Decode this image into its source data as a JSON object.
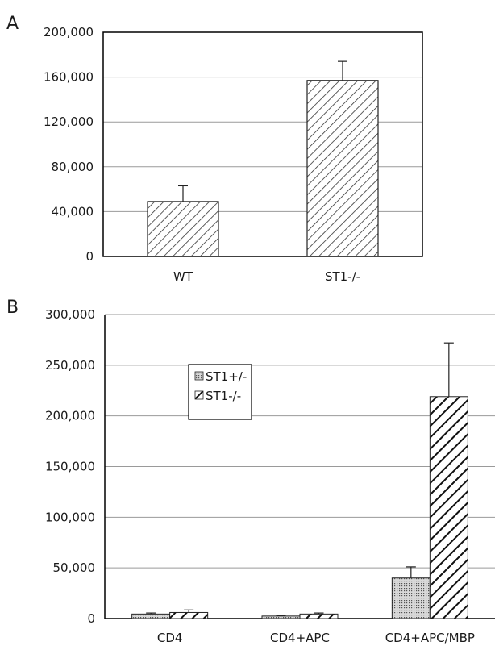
{
  "chart_data": [
    {
      "type": "bar",
      "panel": "A",
      "categories": [
        "WT",
        "ST1-/-"
      ],
      "values": [
        49000,
        157000
      ],
      "errors": [
        14000,
        17000
      ],
      "ylim": [
        0,
        200000
      ],
      "yticks": [
        "0",
        "40,000",
        "80,000",
        "120,000",
        "160,000",
        "200,000"
      ],
      "grid": true,
      "legend": null,
      "title": "",
      "xlabel": "",
      "ylabel": ""
    },
    {
      "type": "bar",
      "panel": "B",
      "categories": [
        "CD4",
        "CD4+APC",
        "CD4+APC/MBP"
      ],
      "series": [
        {
          "name": "ST1+/-",
          "values": [
            4500,
            2500,
            40000
          ],
          "errors": [
            1000,
            800,
            11000
          ]
        },
        {
          "name": "ST1-/-",
          "values": [
            6000,
            4500,
            219000
          ],
          "errors": [
            2500,
            1000,
            53000
          ]
        }
      ],
      "ylim": [
        0,
        300000
      ],
      "yticks": [
        "0",
        "50,000",
        "100,000",
        "150,000",
        "200,000",
        "250,000",
        "300,000"
      ],
      "grid": true,
      "legend": "upper-left",
      "title": "",
      "xlabel": "",
      "ylabel": ""
    }
  ]
}
